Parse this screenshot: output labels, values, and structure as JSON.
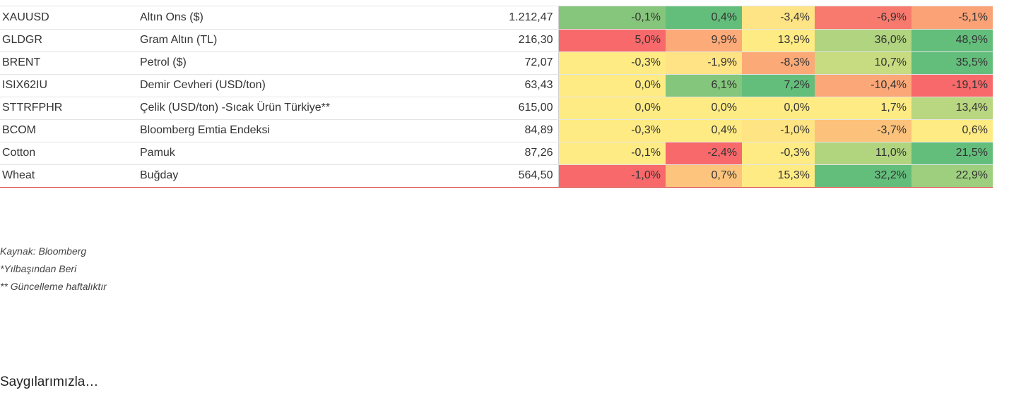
{
  "table": {
    "rows": [
      {
        "code": "XAUUSD",
        "name": "Altın Ons ($)",
        "price": "1.212,47",
        "changes": [
          "-0,1%",
          "0,4%",
          "-3,4%",
          "-6,9%",
          "-5,1%"
        ],
        "colors": [
          "#86c67c",
          "#63be7b",
          "#ffe485",
          "#f8796d",
          "#fba276"
        ]
      },
      {
        "code": "GLDGR",
        "name": "Gram Altın (TL)",
        "price": "216,30",
        "changes": [
          "5,0%",
          "9,9%",
          "13,9%",
          "36,0%",
          "48,9%"
        ],
        "colors": [
          "#f8696b",
          "#fcaa78",
          "#ffeb84",
          "#b0d47f",
          "#63be7b"
        ]
      },
      {
        "code": "BRENT",
        "name": "Petrol ($)",
        "price": "72,07",
        "changes": [
          "-0,3%",
          "-1,9%",
          "-8,3%",
          "10,7%",
          "35,5%"
        ],
        "colors": [
          "#ffeb84",
          "#ffe384",
          "#fbaa77",
          "#c7db81",
          "#63be7b"
        ]
      },
      {
        "code": "ISIX62IU",
        "name": "Demir Cevheri (USD/ton)",
        "price": "63,43",
        "changes": [
          "0,0%",
          "6,1%",
          "7,2%",
          "-10,4%",
          "-19,1%"
        ],
        "colors": [
          "#ffeb84",
          "#84c67c",
          "#63be7b",
          "#fba777",
          "#f8696b"
        ]
      },
      {
        "code": "STTRFPHR",
        "name": "Çelik (USD/ton) -Sıcak Ürün Türkiye**",
        "price": "615,00",
        "changes": [
          "0,0%",
          "0,0%",
          "0,0%",
          "1,7%",
          "13,4%"
        ],
        "colors": [
          "#ffeb84",
          "#ffeb84",
          "#ffeb84",
          "#ffeb84",
          "#b9d680"
        ]
      },
      {
        "code": "BCOM",
        "name": "Bloomberg Emtia Endeksi",
        "price": "84,89",
        "changes": [
          "-0,3%",
          "0,4%",
          "-1,0%",
          "-3,7%",
          "0,6%"
        ],
        "colors": [
          "#ffeb84",
          "#ffeb84",
          "#ffe484",
          "#fcc27b",
          "#ffeb84"
        ]
      },
      {
        "code": "Cotton",
        "name": "Pamuk",
        "price": "87,26",
        "changes": [
          "-0,1%",
          "-2,4%",
          "-0,3%",
          "11,0%",
          "21,5%"
        ],
        "colors": [
          "#ffeb84",
          "#f8696b",
          "#ffeb84",
          "#b1d47f",
          "#63be7b"
        ]
      },
      {
        "code": "Wheat",
        "name": "Buğday",
        "price": "564,50",
        "changes": [
          "-1,0%",
          "0,7%",
          "15,3%",
          "32,2%",
          "22,9%"
        ],
        "colors": [
          "#f8696b",
          "#fdc47d",
          "#ffeb84",
          "#63be7b",
          "#9dcf7e"
        ]
      }
    ]
  },
  "footnotes": [
    "Kaynak: Bloomberg",
    "*Yılbaşından Beri",
    "** Güncelleme haftalıktır"
  ],
  "closing": "Saygılarımızla…"
}
